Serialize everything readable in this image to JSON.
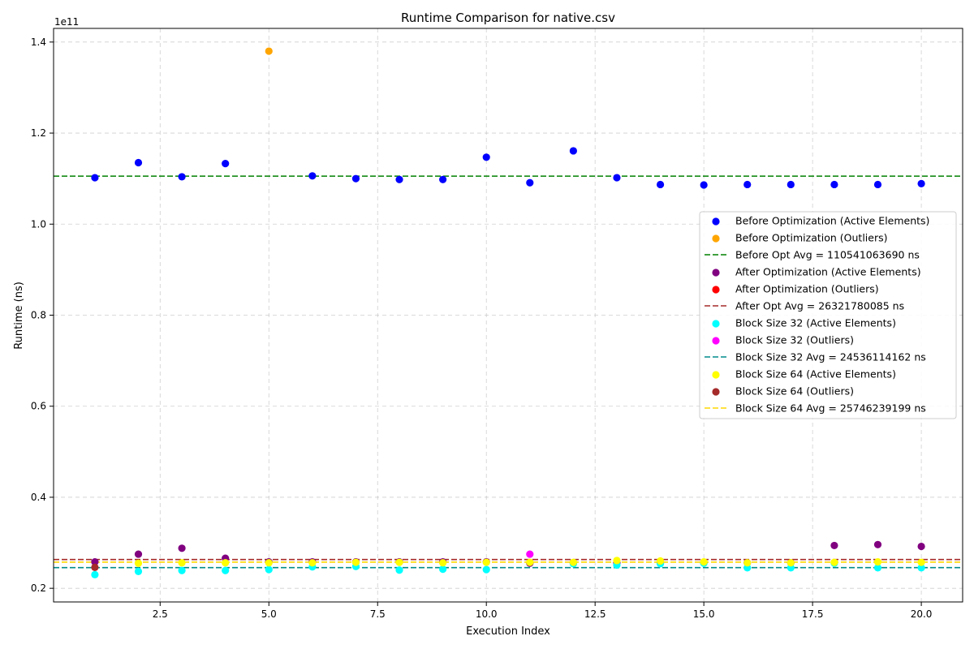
{
  "chart_data": {
    "type": "scatter",
    "title": "Runtime Comparison for native.csv",
    "xlabel": "Execution Index",
    "ylabel": "Runtime (ns)",
    "y_offset_label": "1e11",
    "xlim": [
      0.05,
      20.95
    ],
    "ylim": [
      0.17,
      1.43
    ],
    "x_ticks": [
      2.5,
      5.0,
      7.5,
      10.0,
      12.5,
      15.0,
      17.5,
      20.0
    ],
    "x_tick_labels": [
      "2.5",
      "5.0",
      "7.5",
      "10.0",
      "12.5",
      "15.0",
      "17.5",
      "20.0"
    ],
    "y_ticks": [
      0.2,
      0.4,
      0.6,
      0.8,
      1.0,
      1.2,
      1.4
    ],
    "y_tick_labels": [
      "0.2",
      "0.4",
      "0.6",
      "0.8",
      "1.0",
      "1.2",
      "1.4"
    ],
    "grid": true,
    "legend_position": "center-right",
    "series": [
      {
        "name": "Before Optimization (Active Elements)",
        "kind": "scatter",
        "color": "#0000ff",
        "x": [
          1,
          2,
          3,
          4,
          6,
          7,
          8,
          9,
          10,
          11,
          12,
          13,
          14,
          15,
          16,
          17,
          18,
          19,
          20
        ],
        "y": [
          1.102,
          1.135,
          1.104,
          1.133,
          1.106,
          1.1,
          1.098,
          1.098,
          1.147,
          1.091,
          1.161,
          1.102,
          1.087,
          1.086,
          1.087,
          1.087,
          1.087,
          1.087,
          1.089
        ]
      },
      {
        "name": "Before Optimization (Outliers)",
        "kind": "scatter",
        "color": "#ffa500",
        "x": [
          5
        ],
        "y": [
          1.38
        ]
      },
      {
        "name": "Before Opt Avg = 110541063690 ns",
        "kind": "hline",
        "color": "#008000",
        "y": 1.1054
      },
      {
        "name": "After Optimization (Active Elements)",
        "kind": "scatter",
        "color": "#800080",
        "x": [
          1,
          2,
          3,
          4,
          5,
          6,
          7,
          8,
          9,
          10,
          11,
          12,
          13,
          14,
          15,
          16,
          17,
          18,
          19,
          20
        ],
        "y": [
          0.258,
          0.275,
          0.288,
          0.266,
          0.258,
          0.258,
          0.258,
          0.258,
          0.258,
          0.258,
          0.255,
          0.256,
          0.256,
          0.255,
          0.256,
          0.256,
          0.256,
          0.294,
          0.296,
          0.292
        ]
      },
      {
        "name": "After Optimization (Outliers)",
        "kind": "scatter",
        "color": "#ff0000",
        "x": [],
        "y": []
      },
      {
        "name": "After Opt Avg = 26321780085 ns",
        "kind": "hline",
        "color": "#a52a2a",
        "y": 0.2632
      },
      {
        "name": "Block Size 32 (Active Elements)",
        "kind": "scatter",
        "color": "#00ffff",
        "x": [
          1,
          2,
          3,
          4,
          5,
          6,
          7,
          8,
          9,
          10,
          12,
          13,
          14,
          15,
          16,
          17,
          18,
          19,
          20
        ],
        "y": [
          0.23,
          0.237,
          0.239,
          0.239,
          0.241,
          0.247,
          0.248,
          0.24,
          0.242,
          0.241,
          0.254,
          0.251,
          0.254,
          0.255,
          0.245,
          0.245,
          0.255,
          0.245,
          0.245
        ]
      },
      {
        "name": "Block Size 32 (Outliers)",
        "kind": "scatter",
        "color": "#ff00ff",
        "x": [
          11
        ],
        "y": [
          0.275
        ]
      },
      {
        "name": "Block Size 32 Avg = 24536114162 ns",
        "kind": "hline",
        "color": "#008b8b",
        "y": 0.2454
      },
      {
        "name": "Block Size 64 (Active Elements)",
        "kind": "scatter",
        "color": "#ffff00",
        "x": [
          2,
          3,
          4,
          5,
          6,
          7,
          8,
          9,
          10,
          11,
          12,
          13,
          14,
          15,
          16,
          17,
          18,
          19,
          20
        ],
        "y": [
          0.255,
          0.256,
          0.256,
          0.256,
          0.256,
          0.257,
          0.257,
          0.256,
          0.257,
          0.257,
          0.257,
          0.261,
          0.26,
          0.258,
          0.256,
          0.256,
          0.257,
          0.258,
          0.257
        ]
      },
      {
        "name": "Block Size 64 (Outliers)",
        "kind": "scatter",
        "color": "#a52a2a",
        "x": [
          1
        ],
        "y": [
          0.246
        ]
      },
      {
        "name": "Block Size 64 Avg = 25746239199 ns",
        "kind": "hline",
        "color": "#ffd700",
        "y": 0.2575
      }
    ]
  }
}
